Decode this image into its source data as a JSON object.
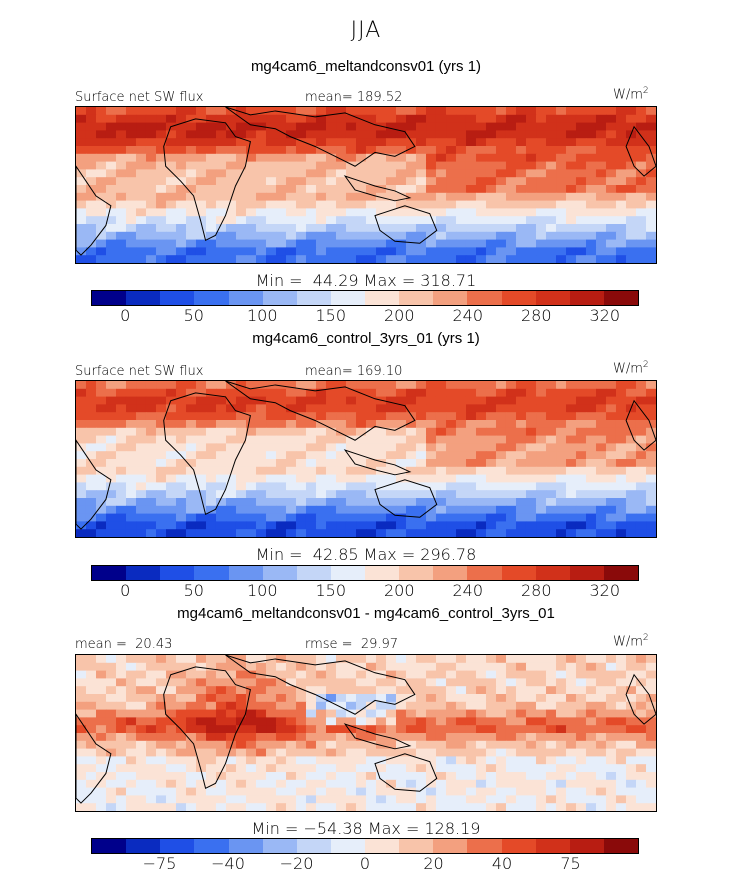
{
  "season": "JJA",
  "panels": [
    {
      "title": "mg4cam6_meltandconsv01 (yrs 1)",
      "left_label": "Surface net SW flux",
      "center_label": "mean= 189.52",
      "units": "W/m",
      "units_sup": "2",
      "minmax": "Min =  44.29 Max = 318.71",
      "colorbar_ticks": [
        "0",
        "50",
        "100",
        "150",
        "200",
        "240",
        "280",
        "320"
      ],
      "type": "abs",
      "mean_value": 189.52
    },
    {
      "title": "mg4cam6_control_3yrs_01 (yrs 1)",
      "left_label": "Surface net SW flux",
      "center_label": "mean= 169.10",
      "units": "W/m",
      "units_sup": "2",
      "minmax": "Min =  42.85 Max = 296.78",
      "colorbar_ticks": [
        "0",
        "50",
        "100",
        "150",
        "200",
        "240",
        "280",
        "320"
      ],
      "type": "abs",
      "mean_value": 169.1
    },
    {
      "title": "mg4cam6_meltandconsv01 - mg4cam6_control_3yrs_01",
      "left_label": "mean =  20.43",
      "center_label": "rmse =  29.97",
      "units": "W/m",
      "units_sup": "2",
      "minmax": "Min = −54.38 Max = 128.19",
      "colorbar_ticks": [
        "−75",
        "−40",
        "−20",
        "0",
        "20",
        "40",
        "75"
      ],
      "type": "diff",
      "mean_value": 20.43
    }
  ],
  "colors": {
    "abs_scale": [
      "#00008b",
      "#0a2bc0",
      "#1f4fe6",
      "#3a70f0",
      "#6a95f2",
      "#9ab8f5",
      "#c4d6f7",
      "#e6eefa",
      "#fbe3d6",
      "#f8c4aa",
      "#f3a07f",
      "#ec6f4b",
      "#e44a28",
      "#d1311a",
      "#b81d12",
      "#8a0a0a"
    ],
    "diff_scale": [
      "#00008b",
      "#0a2bc0",
      "#1f4fe6",
      "#3a70f0",
      "#6a95f2",
      "#9ab8f5",
      "#c4d6f7",
      "#e6eefa",
      "#fbe3d6",
      "#f8c4aa",
      "#f3a07f",
      "#ec6f4b",
      "#e44a28",
      "#d1311a",
      "#b81d12",
      "#8a0a0a"
    ]
  }
}
